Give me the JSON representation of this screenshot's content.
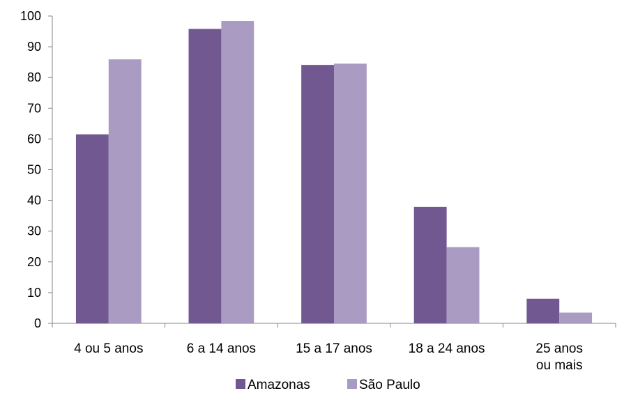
{
  "chart_data": {
    "type": "bar",
    "categories": [
      [
        "4 ou 5 anos"
      ],
      [
        "6 a 14 anos"
      ],
      [
        "15 a 17 anos"
      ],
      [
        "18 a 24 anos"
      ],
      [
        "25 anos",
        "ou mais"
      ]
    ],
    "series": [
      {
        "name": "Amazonas",
        "color": "#725891",
        "values": [
          61.5,
          95.8,
          84.1,
          37.9,
          8.0
        ]
      },
      {
        "name": "São Paulo",
        "color": "#a99bc1",
        "values": [
          85.9,
          98.4,
          84.5,
          24.8,
          3.5
        ]
      }
    ],
    "title": "",
    "xlabel": "",
    "ylabel": "",
    "ylim": [
      0,
      100
    ],
    "yticks": [
      0,
      10,
      20,
      30,
      40,
      50,
      60,
      70,
      80,
      90,
      100
    ],
    "grid": false,
    "legend_position": "bottom"
  }
}
